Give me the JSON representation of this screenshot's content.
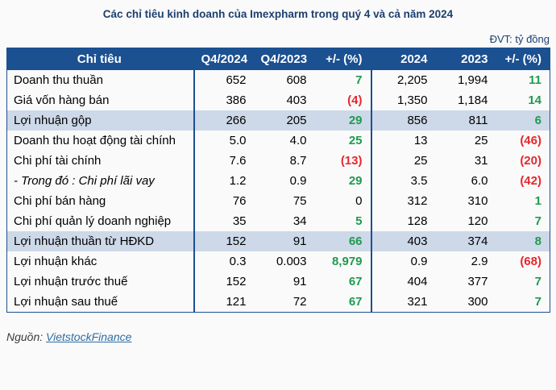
{
  "page": {
    "title": "Các chỉ tiêu kinh doanh của Imexpharm trong quý 4 và cả năm 2024",
    "unit_label": "ĐVT: tỷ đồng",
    "source_label": "Nguồn:",
    "source_link_text": "VietstockFinance"
  },
  "colors": {
    "header_bg": "#1B5091",
    "highlight_bg": "#CDD9E8",
    "positive_green": "#1F9A50",
    "negative_red": "#E8262D",
    "title_navy": "#1C3F70",
    "link_blue": "#2E6DA4"
  },
  "chart_data": {
    "type": "table",
    "title": "Các chỉ tiêu kinh doanh của Imexpharm trong quý 4 và cả năm 2024",
    "unit": "ĐVT: tỷ đồng",
    "source": "Nguồn: VietstockFinance",
    "columns": [
      "Chỉ tiêu",
      "Q4/2024",
      "Q4/2023",
      "+/- (%)",
      "2024",
      "2023",
      "+/- (%)"
    ],
    "rows": [
      {
        "label": "Doanh thu thuần",
        "values": [
          "652",
          "608",
          "7",
          "2,205",
          "1,994",
          "11"
        ],
        "pq_color": "pos",
        "py_color": "pos",
        "highlight": false,
        "italic": false
      },
      {
        "label": "Giá vốn hàng bán",
        "values": [
          "386",
          "403",
          "(4)",
          "1,350",
          "1,184",
          "14"
        ],
        "pq_color": "neg",
        "py_color": "pos",
        "highlight": false,
        "italic": false
      },
      {
        "label": "Lợi nhuận gộp",
        "values": [
          "266",
          "205",
          "29",
          "856",
          "811",
          "6"
        ],
        "pq_color": "pos",
        "py_color": "pos",
        "highlight": true,
        "italic": false
      },
      {
        "label": "Doanh thu hoạt động tài chính",
        "values": [
          "5.0",
          "4.0",
          "25",
          "13",
          "25",
          "(46)"
        ],
        "pq_color": "pos",
        "py_color": "neg",
        "highlight": false,
        "italic": false
      },
      {
        "label": "Chi phí tài chính",
        "values": [
          "7.6",
          "8.7",
          "(13)",
          "25",
          "31",
          "(20)"
        ],
        "pq_color": "neg",
        "py_color": "neg",
        "highlight": false,
        "italic": false
      },
      {
        "label": "- Trong đó : Chi phí lãi vay",
        "values": [
          "1.2",
          "0.9",
          "29",
          "3.5",
          "6.0",
          "(42)"
        ],
        "pq_color": "pos",
        "py_color": "neg",
        "highlight": false,
        "italic": true
      },
      {
        "label": "Chi phí bán hàng",
        "values": [
          "76",
          "75",
          "0",
          "312",
          "310",
          "1"
        ],
        "pq_color": "neu",
        "py_color": "pos",
        "highlight": false,
        "italic": false
      },
      {
        "label": "Chi phí quản lý doanh nghiệp",
        "values": [
          "35",
          "34",
          "5",
          "128",
          "120",
          "7"
        ],
        "pq_color": "pos",
        "py_color": "pos",
        "highlight": false,
        "italic": false
      },
      {
        "label": "Lợi nhuận thuần từ HĐKD",
        "values": [
          "152",
          "91",
          "66",
          "403",
          "374",
          "8"
        ],
        "pq_color": "pos",
        "py_color": "pos",
        "highlight": true,
        "italic": false
      },
      {
        "label": "Lợi nhuận khác",
        "values": [
          "0.3",
          "0.003",
          "8,979",
          "0.9",
          "2.9",
          "(68)"
        ],
        "pq_color": "pos",
        "py_color": "neg",
        "highlight": false,
        "italic": false
      },
      {
        "label": "Lợi nhuận trước thuế",
        "values": [
          "152",
          "91",
          "67",
          "404",
          "377",
          "7"
        ],
        "pq_color": "pos",
        "py_color": "pos",
        "highlight": false,
        "italic": false
      },
      {
        "label": "Lợi nhuận sau thuế",
        "values": [
          "121",
          "72",
          "67",
          "321",
          "300",
          "7"
        ],
        "pq_color": "pos",
        "py_color": "pos",
        "highlight": false,
        "italic": false
      }
    ]
  }
}
